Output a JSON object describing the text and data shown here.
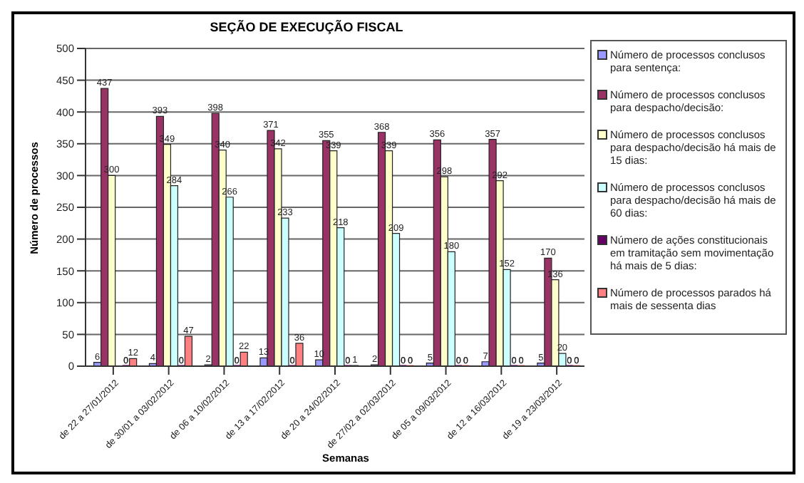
{
  "chart_data": {
    "type": "bar",
    "title": "SEÇÃO DE EXECUÇÃO FISCAL",
    "xlabel": "Semanas",
    "ylabel": "Número de processos",
    "categories": [
      "de 22 a 27/01/2012",
      "de 30/01 a 03/02/2012",
      "de 06 a 10/02/2012",
      "de 13 a 17/02/2012",
      "de 20 a 24/02/2012",
      "de 27/02 a 02/03/2012",
      "de 05 a 09/03/2012",
      "de 12 a 16/03/2012",
      "de 19 a 23/03/2012"
    ],
    "series": [
      {
        "name": "Número de processos conclusos para sentença:",
        "color": "#9999ff",
        "values": [
          6,
          4,
          2,
          13,
          10,
          2,
          5,
          7,
          5
        ]
      },
      {
        "name": "Número de processos conclusos para despacho/decisão:",
        "color": "#993366",
        "values": [
          437,
          393,
          398,
          371,
          355,
          368,
          356,
          357,
          170
        ]
      },
      {
        "name": "Número de processos conclusos para despacho/decisão há mais de 15 dias:",
        "color": "#ffffcc",
        "values": [
          300,
          349,
          340,
          342,
          339,
          339,
          298,
          292,
          136
        ]
      },
      {
        "name": "Número de processos conclusos para despacho/decisão há mais de 60 dias:",
        "color": "#ccffff",
        "values": [
          null,
          284,
          266,
          233,
          218,
          209,
          180,
          152,
          20
        ]
      },
      {
        "name": "Número de ações constitucionais em tramitação sem movimentação há mais de 5 dias:",
        "color": "#660066",
        "values": [
          0,
          0,
          0,
          0,
          0,
          0,
          0,
          0,
          0
        ]
      },
      {
        "name": "Número de processos parados há mais de sessenta dias",
        "color": "#ff8080",
        "values": [
          12,
          47,
          22,
          36,
          1,
          0,
          0,
          0,
          0
        ]
      }
    ],
    "ylim": [
      0,
      500
    ],
    "yticks": [
      0,
      50,
      100,
      150,
      200,
      250,
      300,
      350,
      400,
      450,
      500
    ],
    "grid": "y",
    "legend": "right",
    "data_labels": true
  }
}
